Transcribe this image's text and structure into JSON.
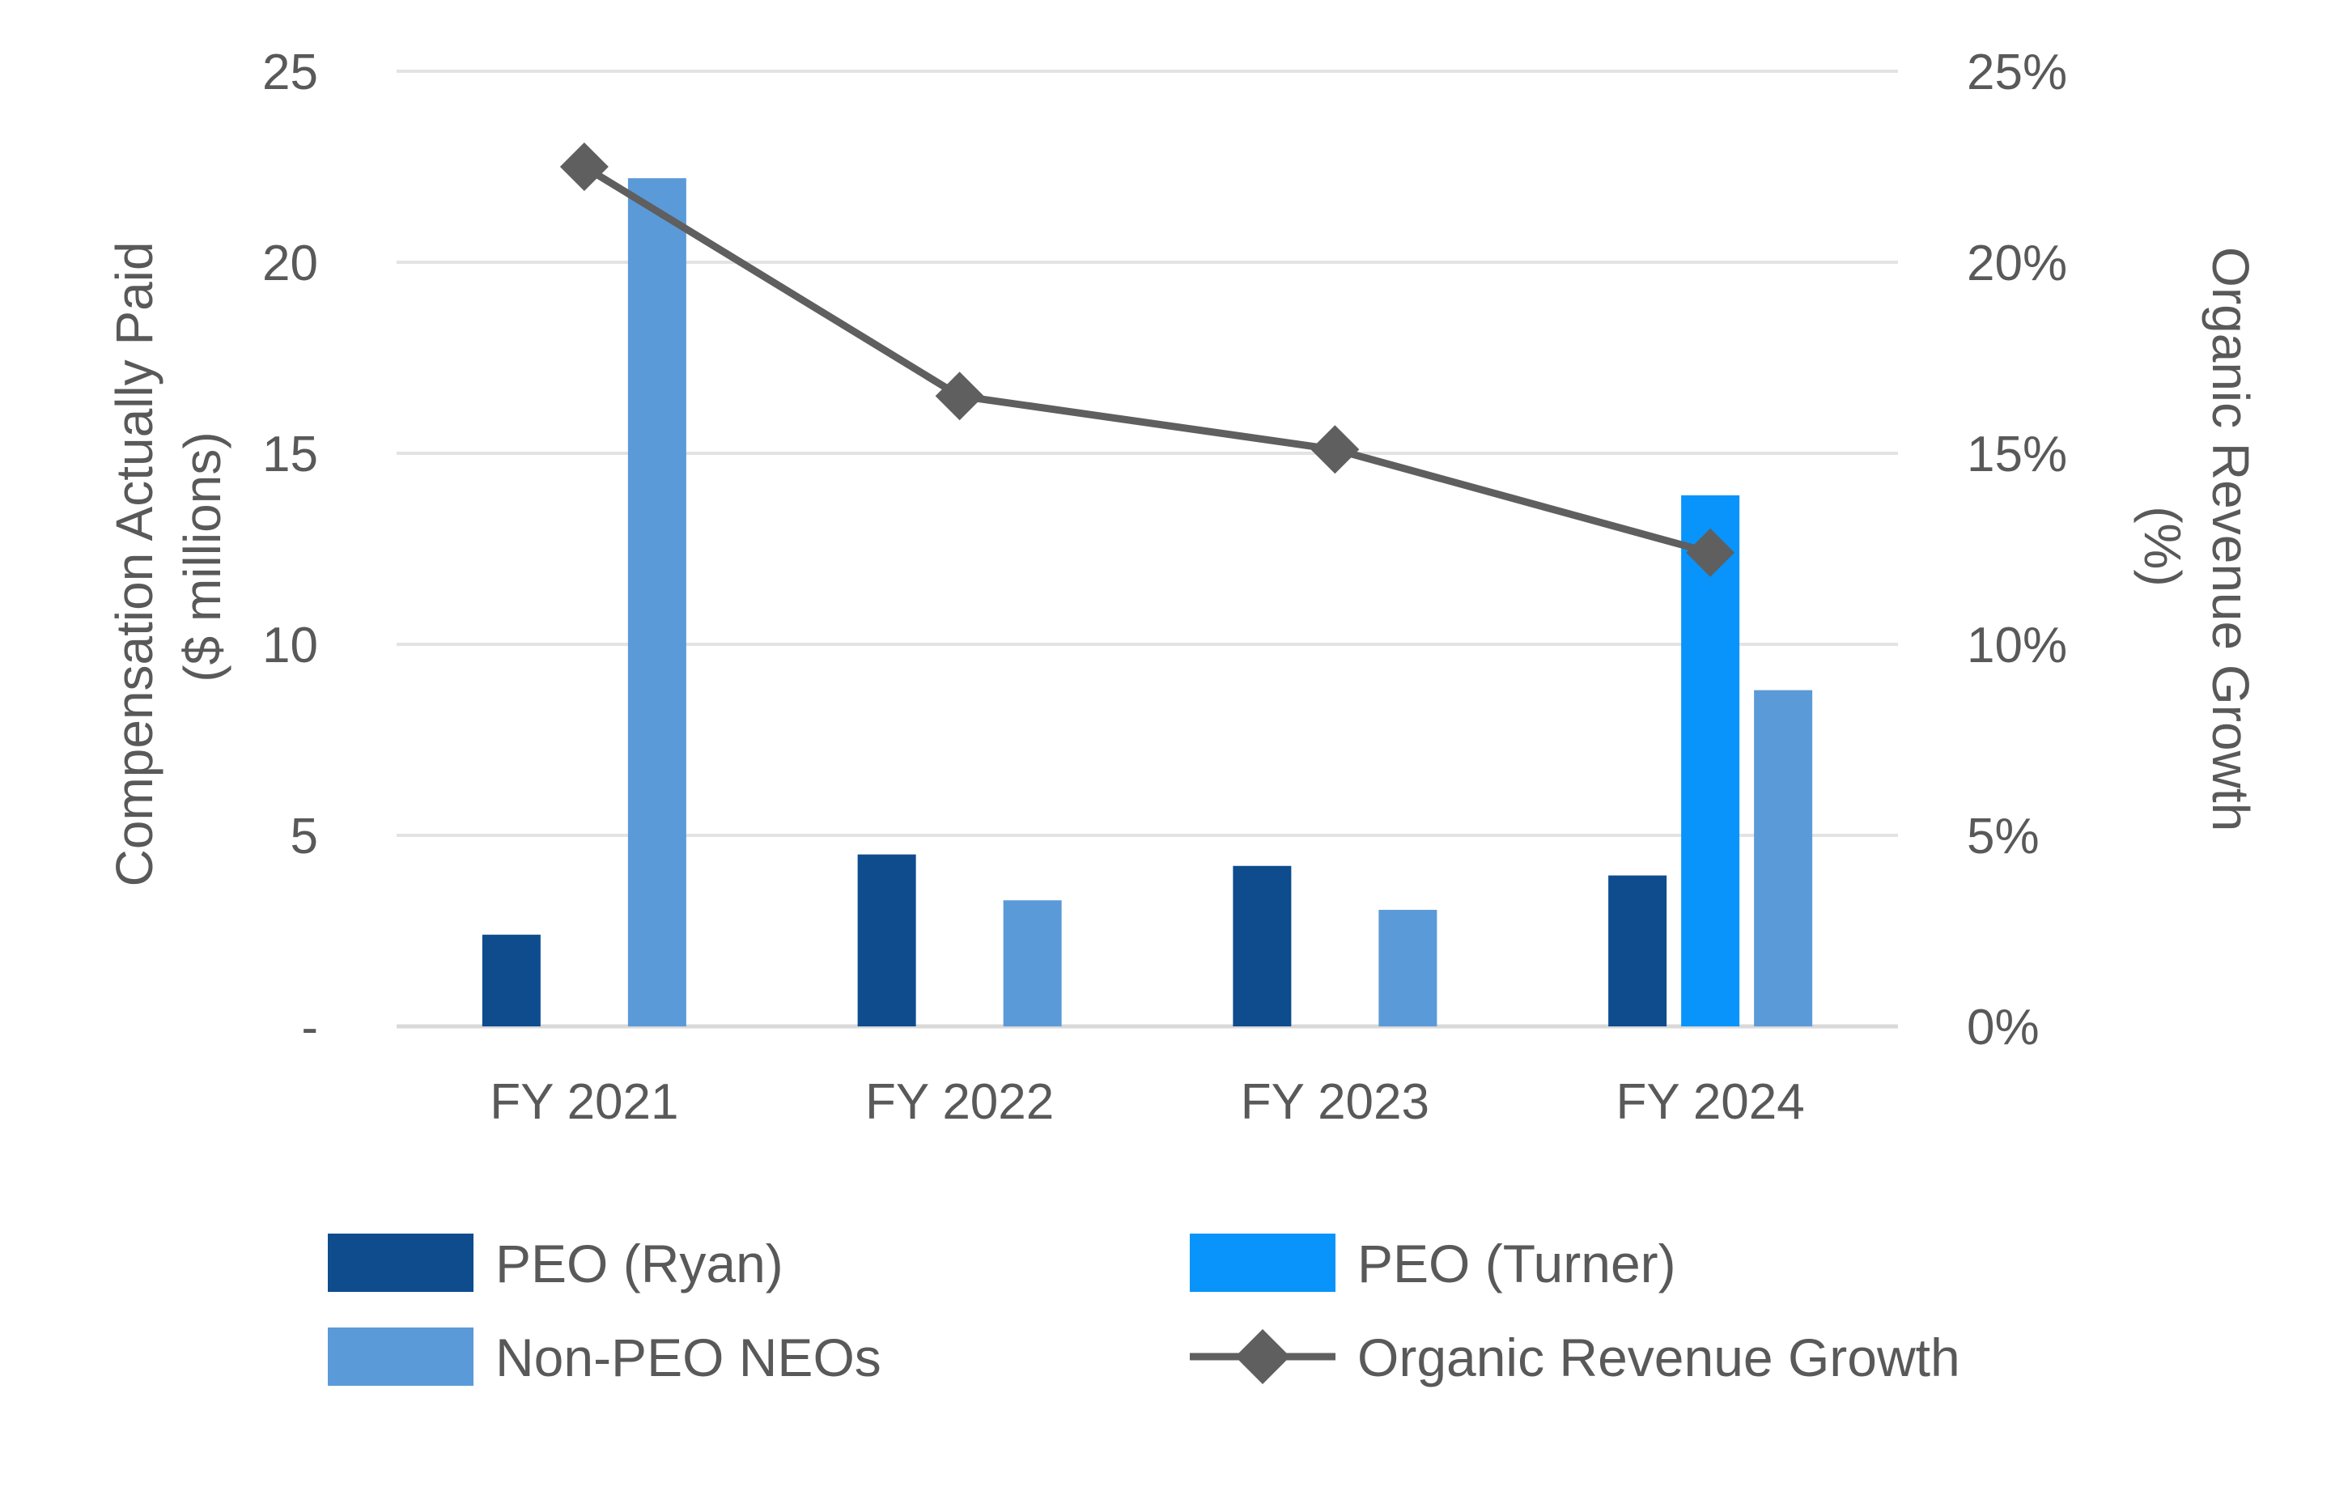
{
  "chart_data": {
    "type": "bar",
    "title": "",
    "categories": [
      "FY 2021",
      "FY 2022",
      "FY 2023",
      "FY 2024"
    ],
    "series": [
      {
        "name": "PEO (Ryan)",
        "type": "bar",
        "color": "#0e4c8e",
        "values": [
          2.4,
          4.5,
          4.2,
          3.95
        ]
      },
      {
        "name": "PEO (Turner)",
        "type": "bar",
        "color": "#0894fb",
        "values": [
          null,
          null,
          null,
          13.9
        ]
      },
      {
        "name": "Non-PEO NEOs",
        "type": "bar",
        "color": "#5b9ad8",
        "values": [
          22.2,
          3.3,
          3.05,
          8.8
        ]
      },
      {
        "name": "Organic Revenue Growth",
        "type": "line",
        "axis": "right",
        "color": "#5f5f5f",
        "marker": "diamond",
        "values": [
          22.5,
          16.5,
          15.1,
          12.4
        ]
      }
    ],
    "y_left": {
      "label_line1": "Compensation Actually Paid",
      "label_line2": "($ millions)",
      "ylim": [
        0,
        25
      ],
      "ticks": [
        0,
        5,
        10,
        15,
        20,
        25
      ],
      "tick_labels": [
        "-",
        "5",
        "10",
        "15",
        "20",
        "25"
      ]
    },
    "y_right": {
      "label_line1": "Organic Revenue Growth",
      "label_line2": "(%)",
      "ylim": [
        0,
        25
      ],
      "ticks": [
        0,
        5,
        10,
        15,
        20,
        25
      ],
      "tick_labels": [
        "0%",
        "5%",
        "10%",
        "15%",
        "20%",
        "25%"
      ]
    },
    "grid": true,
    "legend": {
      "position": "bottom",
      "items": [
        "PEO (Ryan)",
        "PEO (Turner)",
        "Non-PEO NEOs",
        "Organic Revenue Growth"
      ]
    }
  }
}
